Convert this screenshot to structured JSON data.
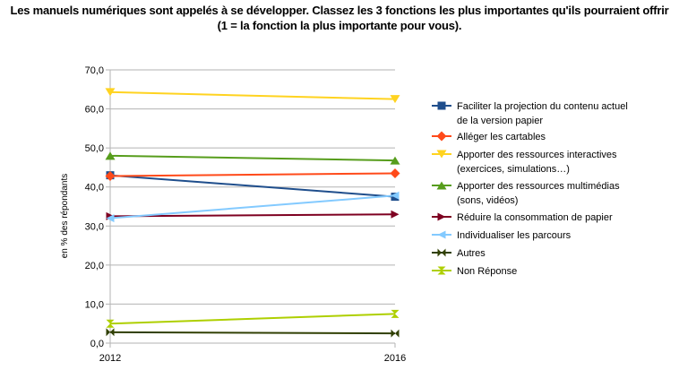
{
  "chart_data": {
    "type": "line",
    "title_lines": [
      "Les manuels numériques sont appelés à se développer. Classez les 3 fonctions les plus importantes qu'ils pourraient offrir",
      "(1 = la fonction la plus importante pour vous)."
    ],
    "ylabel": "en % des répondants",
    "xlabel": "",
    "x": [
      "2012",
      "2016"
    ],
    "ylim": [
      0,
      70
    ],
    "yticks": [
      "0,0",
      "10,0",
      "20,0",
      "30,0",
      "40,0",
      "50,0",
      "60,0",
      "70,0"
    ],
    "grid": true,
    "legend_position": "right",
    "series": [
      {
        "name": "Faciliter la projection du contenu actuel de la version papier",
        "name_lines": [
          "Faciliter la projection du contenu actuel",
          "de la version papier"
        ],
        "values": [
          43.0,
          37.5
        ],
        "color": "#1f4e8c",
        "marker": "square"
      },
      {
        "name": "Alléger les cartables",
        "name_lines": [
          "Alléger les cartables"
        ],
        "values": [
          42.8,
          43.5
        ],
        "color": "#ff4a1a",
        "marker": "diamond"
      },
      {
        "name": "Apporter des ressources interactives (exercices, simulations…)",
        "name_lines": [
          "Apporter des ressources interactives",
          "(exercices, simulations…)"
        ],
        "values": [
          64.3,
          62.5
        ],
        "color": "#ffd320",
        "marker": "triangle-down"
      },
      {
        "name": "Apporter des ressources multimédias (sons, vidéos)",
        "name_lines": [
          "Apporter des ressources multimédias",
          "(sons, vidéos)"
        ],
        "values": [
          48.0,
          46.8
        ],
        "color": "#579d1c",
        "marker": "triangle-up"
      },
      {
        "name": "Réduire la consommation de papier",
        "name_lines": [
          "Réduire la consommation de papier"
        ],
        "values": [
          32.5,
          33.0
        ],
        "color": "#7e0021",
        "marker": "arrow-right"
      },
      {
        "name": "Individualiser les parcours",
        "name_lines": [
          "Individualiser les parcours"
        ],
        "values": [
          32.0,
          37.8
        ],
        "color": "#83caff",
        "marker": "arrow-left"
      },
      {
        "name": "Autres",
        "name_lines": [
          "Autres"
        ],
        "values": [
          2.8,
          2.5
        ],
        "color": "#314004",
        "marker": "bowtie"
      },
      {
        "name": "Non Réponse",
        "name_lines": [
          "Non Réponse"
        ],
        "values": [
          5.0,
          7.5
        ],
        "color": "#aecf00",
        "marker": "hourglass"
      }
    ]
  }
}
